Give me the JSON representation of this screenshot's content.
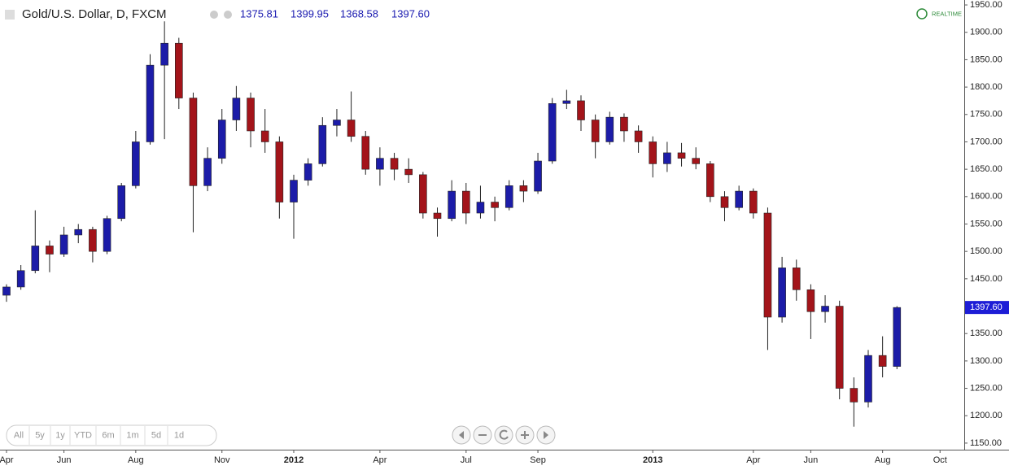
{
  "header": {
    "title": "Gold/U.S. Dollar, D, FXCM",
    "ohlc": [
      {
        "value": 1375.81,
        "label": "1375.81"
      },
      {
        "value": 1399.95,
        "label": "1399.95"
      },
      {
        "value": 1368.58,
        "label": "1368.58"
      },
      {
        "value": 1397.6,
        "label": "1397.60"
      }
    ],
    "realtime": "REALTIME"
  },
  "ui": {
    "range_buttons": [
      "All",
      "5y",
      "1y",
      "YTD",
      "6m",
      "1m",
      "5d",
      "1d"
    ]
  },
  "chart_data": {
    "type": "candlestick",
    "categories": [
      "Apr",
      null,
      null,
      null,
      "Jun",
      null,
      null,
      null,
      null,
      "Aug",
      null,
      null,
      null,
      null,
      null,
      "Nov",
      null,
      null,
      null,
      null,
      "2012",
      null,
      null,
      null,
      null,
      null,
      "Apr",
      null,
      null,
      null,
      null,
      null,
      "Jul",
      null,
      null,
      null,
      null,
      "Sep",
      null,
      null,
      null,
      null,
      null,
      null,
      null,
      "2013",
      null,
      null,
      null,
      null,
      null,
      null,
      "Apr",
      null,
      null,
      null,
      "Jun",
      null,
      null,
      null,
      null,
      "Aug",
      null,
      null,
      null,
      "Oct"
    ],
    "open": [
      1420,
      1435,
      1465,
      1510,
      1495,
      1530,
      1540,
      1500,
      1560,
      1620,
      1700,
      1840,
      1880,
      1780,
      1620,
      1670,
      1740,
      1780,
      1720,
      1700,
      1590,
      1630,
      1660,
      1730,
      1740,
      1710,
      1650,
      1670,
      1650,
      1640,
      1570,
      1560,
      1610,
      1570,
      1590,
      1580,
      1620,
      1610,
      1665,
      1770,
      1775,
      1740,
      1700,
      1745,
      1720,
      1700,
      1660,
      1680,
      1670,
      1660,
      1600,
      1580,
      1610,
      1570,
      1380,
      1470,
      1430,
      1390,
      1400,
      1250,
      1225,
      1310,
      1290,
      null,
      null,
      null
    ],
    "high": [
      1440,
      1475,
      1575,
      1520,
      1545,
      1550,
      1545,
      1565,
      1625,
      1720,
      1860,
      1920,
      1890,
      1790,
      1690,
      1760,
      1802,
      1790,
      1760,
      1710,
      1640,
      1670,
      1745,
      1760,
      1792,
      1720,
      1690,
      1680,
      1670,
      1645,
      1580,
      1630,
      1625,
      1620,
      1600,
      1630,
      1630,
      1680,
      1780,
      1795,
      1785,
      1750,
      1755,
      1752,
      1730,
      1710,
      1700,
      1698,
      1690,
      1665,
      1610,
      1620,
      1615,
      1580,
      1490,
      1485,
      1440,
      1420,
      1410,
      1270,
      1320,
      1345,
      1400,
      null,
      null,
      null
    ],
    "low": [
      1408,
      1430,
      1460,
      1462,
      1490,
      1515,
      1480,
      1495,
      1555,
      1615,
      1695,
      1705,
      1760,
      1535,
      1610,
      1660,
      1720,
      1690,
      1680,
      1560,
      1523,
      1620,
      1655,
      1710,
      1700,
      1640,
      1620,
      1630,
      1625,
      1560,
      1527,
      1555,
      1550,
      1560,
      1555,
      1575,
      1590,
      1605,
      1660,
      1760,
      1720,
      1670,
      1695,
      1700,
      1680,
      1635,
      1645,
      1655,
      1650,
      1590,
      1555,
      1575,
      1560,
      1320,
      1370,
      1410,
      1340,
      1370,
      1230,
      1180,
      1215,
      1270,
      1285,
      null,
      null,
      null
    ],
    "close": [
      1435,
      1465,
      1510,
      1495,
      1530,
      1540,
      1500,
      1560,
      1620,
      1700,
      1840,
      1880,
      1780,
      1620,
      1670,
      1740,
      1780,
      1720,
      1700,
      1590,
      1630,
      1660,
      1730,
      1740,
      1710,
      1650,
      1670,
      1650,
      1640,
      1570,
      1560,
      1610,
      1570,
      1590,
      1580,
      1620,
      1610,
      1665,
      1770,
      1775,
      1740,
      1700,
      1745,
      1720,
      1700,
      1660,
      1680,
      1670,
      1660,
      1600,
      1580,
      1610,
      1570,
      1380,
      1470,
      1430,
      1390,
      1400,
      1250,
      1225,
      1310,
      1290,
      1397.6,
      null,
      null,
      null
    ],
    "up_color": "#1c1ca8",
    "down_color": "#a3141a",
    "ylim": [
      1138,
      1959
    ],
    "yticks": [
      {
        "value": 1150,
        "label": "1150.00"
      },
      {
        "value": 1200,
        "label": "1200.00"
      },
      {
        "value": 1250,
        "label": "1250.00"
      },
      {
        "value": 1300,
        "label": "1300.00"
      },
      {
        "value": 1350,
        "label": "1350.00"
      },
      {
        "value": 1400,
        "label": "1400.00"
      },
      {
        "value": 1450,
        "label": "1450.00"
      },
      {
        "value": 1500,
        "label": "1500.00"
      },
      {
        "value": 1550,
        "label": "1550.00"
      },
      {
        "value": 1600,
        "label": "1600.00"
      },
      {
        "value": 1650,
        "label": "1650.00"
      },
      {
        "value": 1700,
        "label": "1700.00"
      },
      {
        "value": 1750,
        "label": "1750.00"
      },
      {
        "value": 1800,
        "label": "1800.00"
      },
      {
        "value": 1850,
        "label": "1850.00"
      },
      {
        "value": 1900,
        "label": "1900.00"
      },
      {
        "value": 1950,
        "label": "1950.00"
      }
    ],
    "last_price": {
      "value": 1397.6,
      "label": "1397.60"
    },
    "grid": false
  }
}
